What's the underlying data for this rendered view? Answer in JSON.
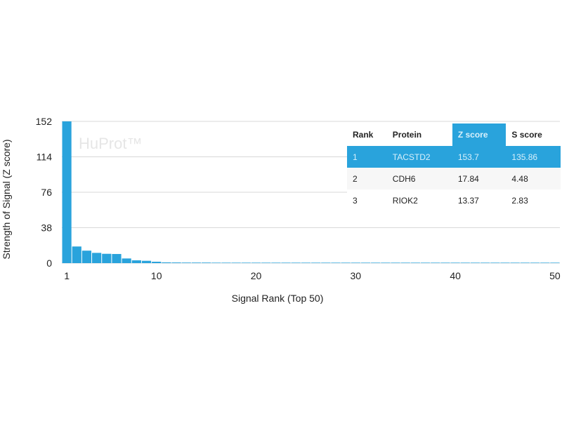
{
  "chart_data": {
    "type": "bar",
    "watermark": "HuProt™",
    "xlabel": "Signal Rank (Top 50)",
    "ylabel": "Strength of Signal (Z score)",
    "yticks": [
      0,
      38,
      76,
      114,
      152
    ],
    "xticks": [
      1,
      10,
      20,
      30,
      40,
      50
    ],
    "ylim": [
      0,
      152
    ],
    "xlim": [
      1,
      50
    ],
    "grid": true,
    "bar_color": "#29a3dc",
    "values": [
      153.7,
      17.84,
      13.37,
      11,
      10,
      9.8,
      5,
      3,
      2.5,
      1.5,
      0.8,
      0.7,
      0.6,
      0.6,
      0.6,
      0.5,
      0.5,
      0.5,
      0.5,
      0.5,
      0.5,
      0.5,
      0.5,
      0.5,
      0.5,
      0.5,
      0.5,
      0.5,
      0.5,
      0.5,
      0.5,
      0.5,
      0.5,
      0.5,
      0.5,
      0.5,
      0.5,
      0.5,
      0.5,
      0.5,
      0.5,
      0.5,
      0.5,
      0.5,
      0.5,
      0.5,
      0.5,
      0.5,
      0.5,
      0.5
    ],
    "table": {
      "headers": [
        "Rank",
        "Protein",
        "Z score",
        "S score"
      ],
      "rows": [
        [
          "1",
          "TACSTD2",
          "153.7",
          "135.86"
        ],
        [
          "2",
          "CDH6",
          "17.84",
          "4.48"
        ],
        [
          "3",
          "RIOK2",
          "13.37",
          "2.83"
        ]
      ],
      "highlight_color": "#29a3dc"
    }
  }
}
